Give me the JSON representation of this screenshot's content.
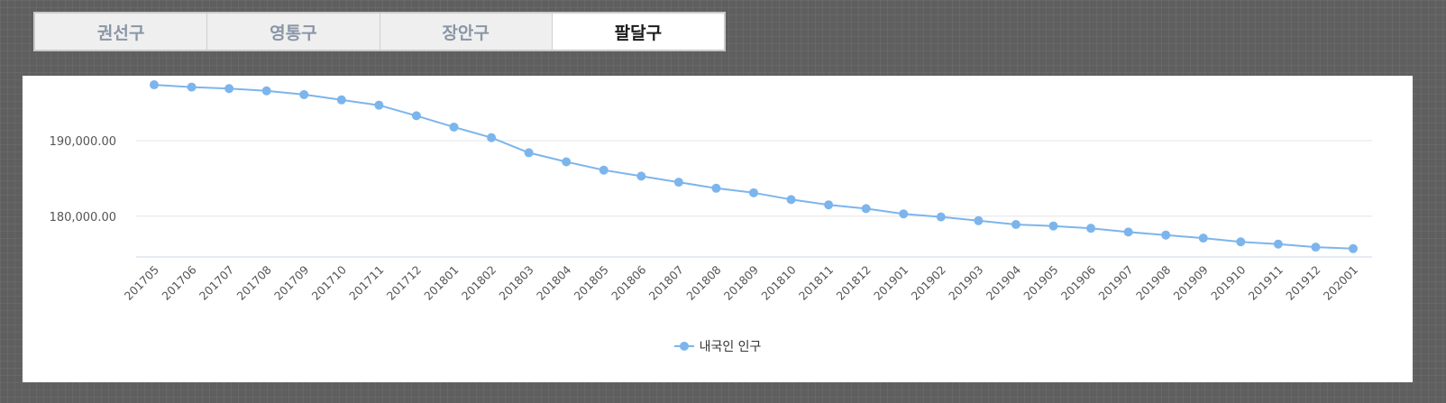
{
  "tabs": [
    {
      "label": "권선구",
      "active": false
    },
    {
      "label": "영통구",
      "active": false
    },
    {
      "label": "장안구",
      "active": false
    },
    {
      "label": "팔달구",
      "active": true
    }
  ],
  "colors": {
    "series": "#7cb5ec",
    "gridline": "#e6e6e6",
    "axis": "#ccd6eb"
  },
  "chart_data": {
    "type": "line",
    "title": "",
    "xlabel": "",
    "ylabel": "",
    "ylim": [
      174600,
      198600
    ],
    "yticks": [
      180000,
      190000
    ],
    "ytick_labels": [
      "180,000.00",
      "190,000.00"
    ],
    "grid": true,
    "legend": "bottom-center",
    "categories": [
      "201705",
      "201706",
      "201707",
      "201708",
      "201709",
      "201710",
      "201711",
      "201712",
      "201801",
      "201802",
      "201803",
      "201804",
      "201805",
      "201806",
      "201807",
      "201808",
      "201809",
      "201810",
      "201811",
      "201812",
      "201901",
      "201902",
      "201903",
      "201904",
      "201905",
      "201906",
      "201907",
      "201908",
      "201909",
      "201910",
      "201911",
      "201912",
      "202001"
    ],
    "series": [
      {
        "name": "내국인 인구",
        "values": [
          197400,
          197100,
          196900,
          196600,
          196100,
          195400,
          194700,
          193300,
          191800,
          190400,
          188400,
          187200,
          186100,
          185300,
          184500,
          183700,
          183100,
          182200,
          181500,
          181000,
          180300,
          179900,
          179400,
          178900,
          178700,
          178400,
          177900,
          177500,
          177100,
          176600,
          176300,
          175900,
          175700
        ]
      }
    ]
  }
}
